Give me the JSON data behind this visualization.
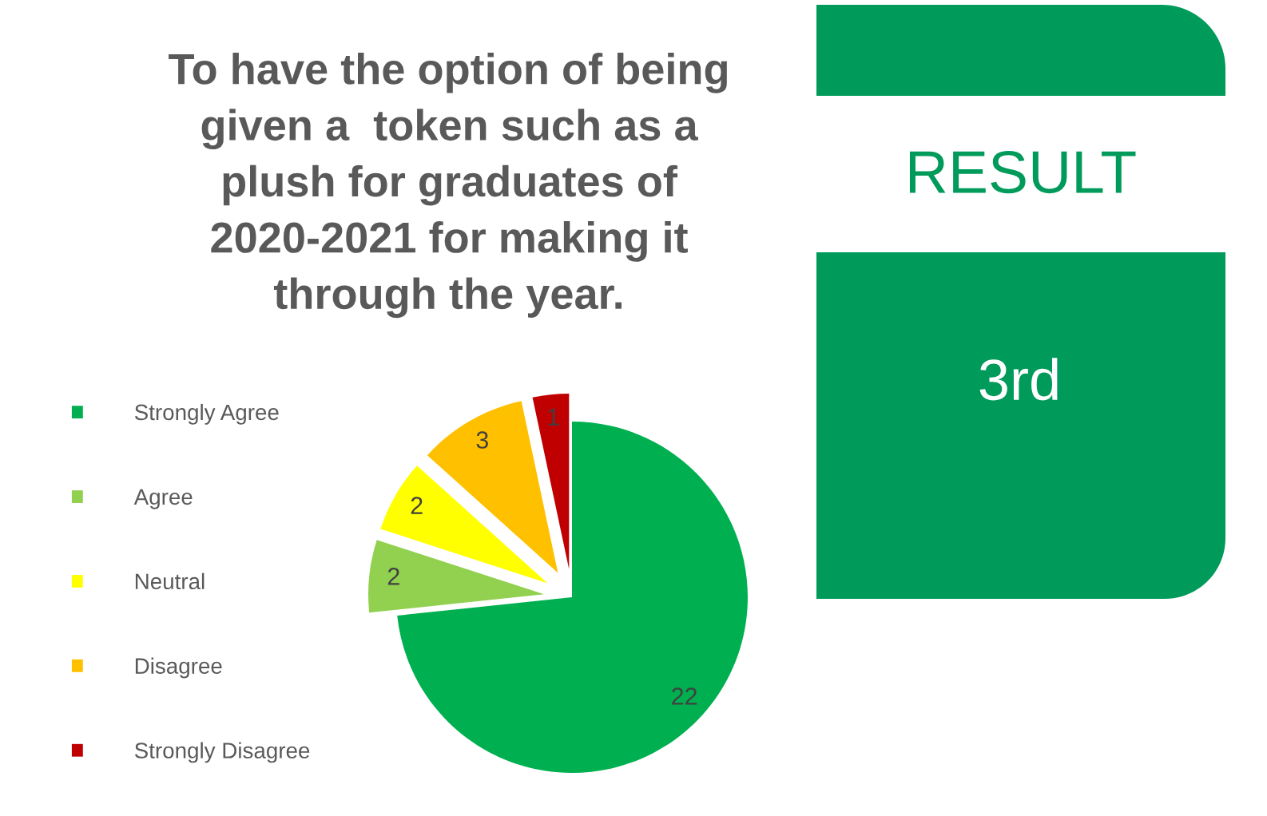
{
  "chart_data": [
    {
      "type": "pie",
      "title": "To have the option of being\ngiven a  token such as a\nplush for graduates of\n2020-2021 for making it\nthrough the year.",
      "categories": [
        "Strongly Agree",
        "Agree",
        "Neutral",
        "Disagree",
        "Strongly Disagree"
      ],
      "values": [
        22,
        2,
        2,
        3,
        1
      ],
      "colors": [
        "#00b050",
        "#92d050",
        "#ffff00",
        "#ffc000",
        "#c00000"
      ],
      "data_labels": true,
      "legend": "left"
    },
    {
      "type": "other",
      "title": "RESULT",
      "annotations": [
        "3rd"
      ]
    }
  ]
}
